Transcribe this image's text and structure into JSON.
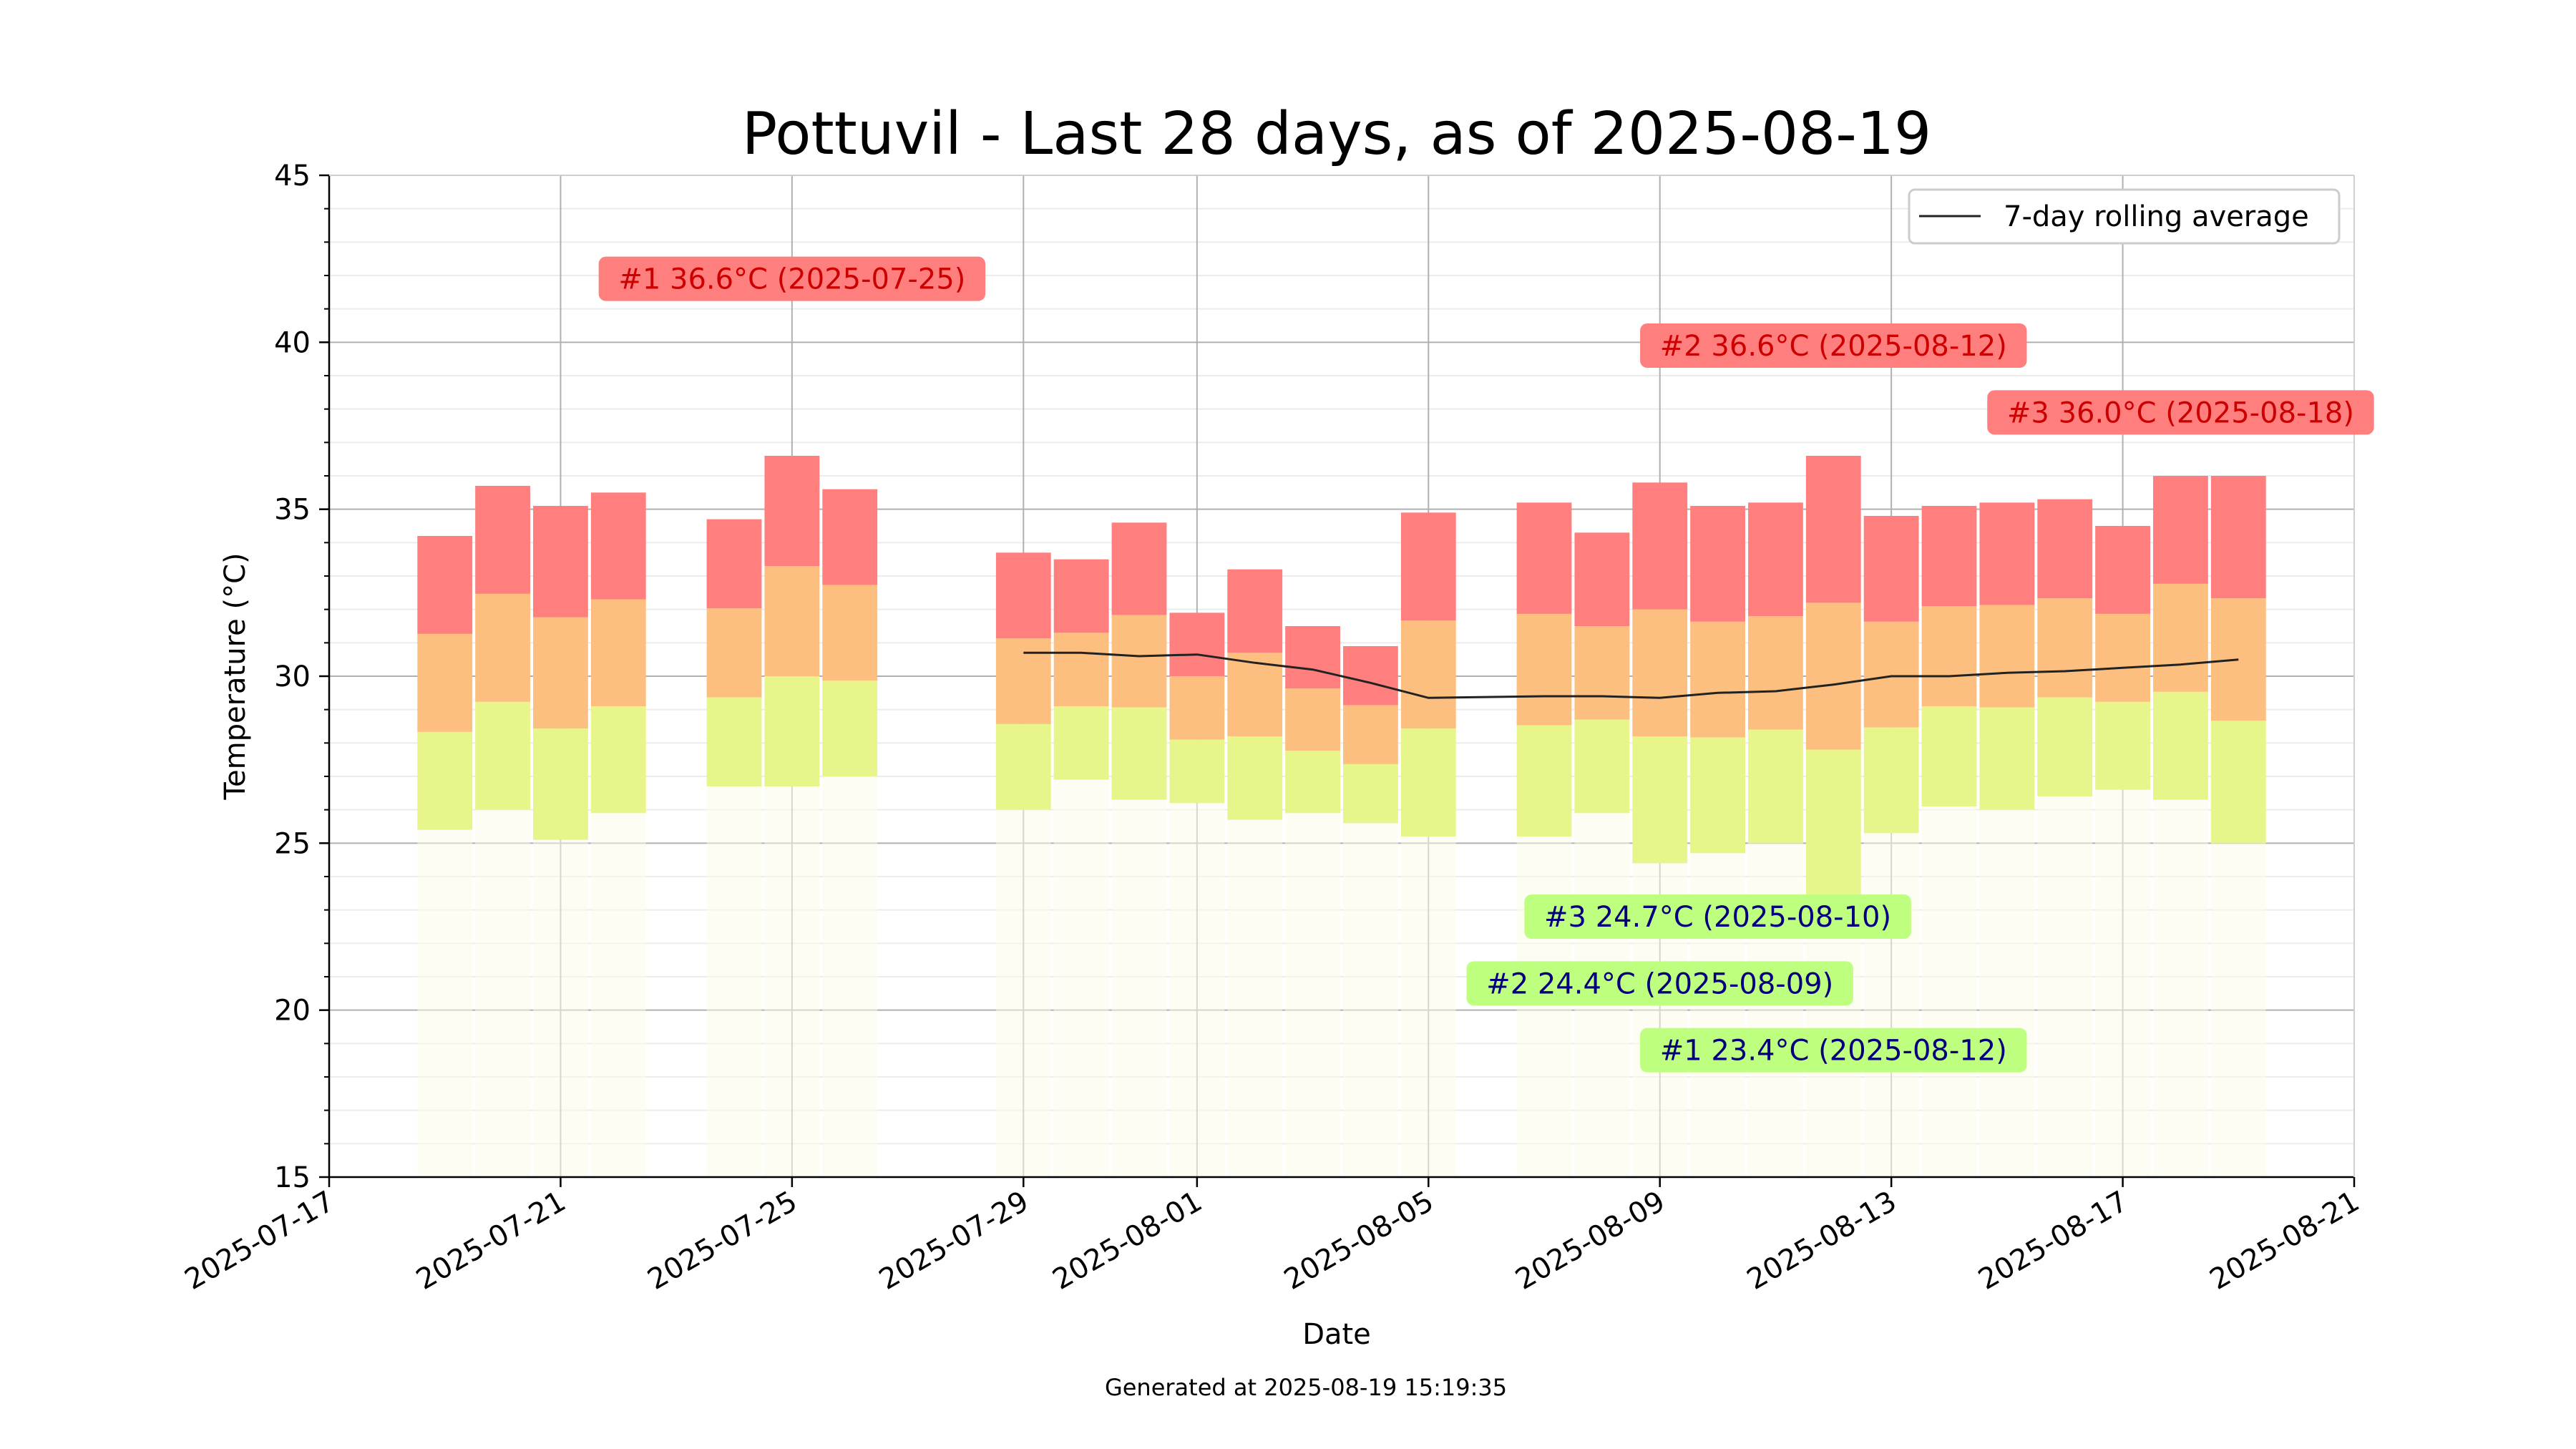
{
  "chart_data": {
    "type": "bar",
    "title": "Pottuvil - Last 28 days, as of 2025-08-19",
    "xlabel": "Date",
    "ylabel": "Temperature (°C)",
    "footer": "Generated at 2025-08-19 15:19:35",
    "xlim": [
      "2025-07-17",
      "2025-08-21"
    ],
    "ylim": [
      15,
      45
    ],
    "xticks": [
      "2025-07-17",
      "2025-07-21",
      "2025-07-25",
      "2025-07-29",
      "2025-08-01",
      "2025-08-05",
      "2025-08-09",
      "2025-08-13",
      "2025-08-17",
      "2025-08-21"
    ],
    "yticks": [
      15,
      20,
      25,
      30,
      35,
      40,
      45
    ],
    "grid": true,
    "legend": {
      "position": "top-right",
      "label": "7-day rolling average"
    },
    "days": [
      {
        "date": "2025-07-19",
        "min": 25.4,
        "mean": 29.8,
        "max": 34.2
      },
      {
        "date": "2025-07-20",
        "min": 26.0,
        "mean": 30.8,
        "max": 35.7
      },
      {
        "date": "2025-07-21",
        "min": 25.1,
        "mean": 30.1,
        "max": 35.1
      },
      {
        "date": "2025-07-22",
        "min": 25.9,
        "mean": 30.7,
        "max": 35.5
      },
      {
        "date": "2025-07-24",
        "min": 26.7,
        "mean": 30.7,
        "max": 34.7
      },
      {
        "date": "2025-07-25",
        "min": 26.7,
        "mean": 31.7,
        "max": 36.6
      },
      {
        "date": "2025-07-26",
        "min": 27.0,
        "mean": 31.3,
        "max": 35.6
      },
      {
        "date": "2025-07-29",
        "min": 26.0,
        "mean": 29.9,
        "max": 33.7
      },
      {
        "date": "2025-07-30",
        "min": 26.9,
        "mean": 30.2,
        "max": 33.5
      },
      {
        "date": "2025-07-31",
        "min": 26.3,
        "mean": 30.4,
        "max": 34.6
      },
      {
        "date": "2025-08-01",
        "min": 26.2,
        "mean": 29.1,
        "max": 31.9
      },
      {
        "date": "2025-08-02",
        "min": 25.7,
        "mean": 29.4,
        "max": 33.2
      },
      {
        "date": "2025-08-03",
        "min": 25.9,
        "mean": 28.7,
        "max": 31.5
      },
      {
        "date": "2025-08-04",
        "min": 25.6,
        "mean": 28.3,
        "max": 30.9
      },
      {
        "date": "2025-08-05",
        "min": 25.2,
        "mean": 30.1,
        "max": 34.9
      },
      {
        "date": "2025-08-07",
        "min": 25.2,
        "mean": 30.2,
        "max": 35.2
      },
      {
        "date": "2025-08-08",
        "min": 25.9,
        "mean": 30.1,
        "max": 34.3
      },
      {
        "date": "2025-08-09",
        "min": 24.4,
        "mean": 30.1,
        "max": 35.8
      },
      {
        "date": "2025-08-10",
        "min": 24.7,
        "mean": 29.9,
        "max": 35.1
      },
      {
        "date": "2025-08-11",
        "min": 25.0,
        "mean": 30.1,
        "max": 35.2
      },
      {
        "date": "2025-08-12",
        "min": 23.4,
        "mean": 30.0,
        "max": 36.6
      },
      {
        "date": "2025-08-13",
        "min": 25.3,
        "mean": 30.0,
        "max": 34.8
      },
      {
        "date": "2025-08-14",
        "min": 26.1,
        "mean": 30.6,
        "max": 35.1
      },
      {
        "date": "2025-08-15",
        "min": 26.0,
        "mean": 30.6,
        "max": 35.2
      },
      {
        "date": "2025-08-16",
        "min": 26.4,
        "mean": 30.8,
        "max": 35.3
      },
      {
        "date": "2025-08-17",
        "min": 26.6,
        "mean": 30.5,
        "max": 34.5
      },
      {
        "date": "2025-08-18",
        "min": 26.3,
        "mean": 31.2,
        "max": 36.0
      },
      {
        "date": "2025-08-19",
        "min": 25.0,
        "mean": 30.5,
        "max": 36.0
      }
    ],
    "rolling_average": [
      {
        "date": "2025-07-29",
        "value": 30.7
      },
      {
        "date": "2025-07-30",
        "value": 30.7
      },
      {
        "date": "2025-07-31",
        "value": 30.6
      },
      {
        "date": "2025-08-01",
        "value": 30.65
      },
      {
        "date": "2025-08-02",
        "value": 30.4
      },
      {
        "date": "2025-08-03",
        "value": 30.2
      },
      {
        "date": "2025-08-04",
        "value": 29.8
      },
      {
        "date": "2025-08-05",
        "value": 29.35
      },
      {
        "date": "2025-08-07",
        "value": 29.4
      },
      {
        "date": "2025-08-08",
        "value": 29.4
      },
      {
        "date": "2025-08-09",
        "value": 29.35
      },
      {
        "date": "2025-08-10",
        "value": 29.5
      },
      {
        "date": "2025-08-11",
        "value": 29.55
      },
      {
        "date": "2025-08-12",
        "value": 29.75
      },
      {
        "date": "2025-08-13",
        "value": 30.0
      },
      {
        "date": "2025-08-14",
        "value": 30.0
      },
      {
        "date": "2025-08-15",
        "value": 30.1
      },
      {
        "date": "2025-08-16",
        "value": 30.15
      },
      {
        "date": "2025-08-17",
        "value": 30.25
      },
      {
        "date": "2025-08-18",
        "value": 30.35
      },
      {
        "date": "2025-08-19",
        "value": 30.5
      }
    ],
    "annotations_max": [
      {
        "text": "#1 36.6°C (2025-07-25)",
        "date": "2025-07-25",
        "y": 41.9
      },
      {
        "text": "#2 36.6°C (2025-08-12)",
        "date": "2025-08-12",
        "y": 39.9
      },
      {
        "text": "#3 36.0°C (2025-08-18)",
        "date": "2025-08-18",
        "y": 37.9
      }
    ],
    "annotations_min": [
      {
        "text": "#3 24.7°C (2025-08-10)",
        "date": "2025-08-10",
        "y": 22.8
      },
      {
        "text": "#2 24.4°C (2025-08-09)",
        "date": "2025-08-09",
        "y": 20.8
      },
      {
        "text": "#1 23.4°C (2025-08-12)",
        "date": "2025-08-12",
        "y": 18.8
      }
    ],
    "colors": {
      "high_band": "#ff7f7f",
      "mid_band": "#fdbf7f",
      "low_band": "#e8f58a",
      "max_label_bg": "#ff7f7f",
      "max_label_text": "#cc0000",
      "min_label_bg": "#bfff7f",
      "min_label_text": "#00007f",
      "rolling_line": "#222222"
    }
  }
}
